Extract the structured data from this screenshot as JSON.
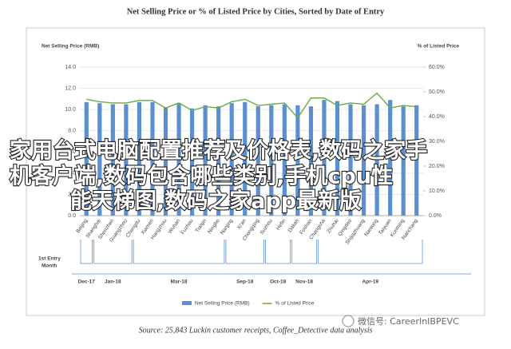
{
  "chart_data": {
    "type": "bar_line",
    "title": "Net Selling Price or % of Listed Price by Cities, Sorted by Date of Entry",
    "y_label": "Net Selling Price (RMB)",
    "y2_label": "% of Listed Price",
    "categories": [
      "Beijing",
      "Shanghai",
      "Shenzhen",
      "Guangzhou",
      "Chengdu",
      "Xiamen",
      "Hangzhou",
      "Wuhan",
      "Fuzhou",
      "Tianjin",
      "Ningbo",
      "Nanjing",
      "Xi'an",
      "Chongqing",
      "Suzhou",
      "Hefei",
      "Dalian",
      "Foshan",
      "Changsha",
      "Zhuhai",
      "Qingdao",
      "Shijiazhuang",
      "Nantong",
      "Taiyuan",
      "Kunming",
      "Nanchang"
    ],
    "series": [
      {
        "name": "Net Selling Price (RMB)",
        "color": "#5b8fd0",
        "kind": "bar",
        "values": [
          10.7,
          10.6,
          10.5,
          10.5,
          10.7,
          10.7,
          10.2,
          10.6,
          10.1,
          10.4,
          10.3,
          10.6,
          10.7,
          10.3,
          10.4,
          10.5,
          10.4,
          10.3,
          10.9,
          10.8,
          10.5,
          10.4,
          10.5,
          10.9,
          10.3,
          10.4
        ]
      },
      {
        "name": "% of Listed Price",
        "color": "#6aaa46",
        "kind": "line",
        "axis": "y2",
        "values": [
          47,
          46,
          45.5,
          45.5,
          46.5,
          46.5,
          43.5,
          45.5,
          42.5,
          44,
          43.5,
          46,
          47,
          44.5,
          45,
          45.5,
          39.5,
          47.5,
          47.5,
          44.5,
          45.5,
          45,
          49.5,
          43.5,
          44.5,
          44
        ]
      }
    ],
    "ylim": [
      0,
      14
    ],
    "yticks": [
      {
        "value": 0,
        "label": "0.0"
      },
      {
        "value": 2,
        "label": "2.0"
      },
      {
        "value": 4,
        "label": "4.0"
      },
      {
        "value": 6,
        "label": "6.0"
      },
      {
        "value": 8,
        "label": "8.0"
      },
      {
        "value": 10,
        "label": "10.0"
      },
      {
        "value": 12,
        "label": "12.0"
      },
      {
        "value": 14,
        "label": "14.0"
      }
    ],
    "y2lim": [
      0,
      60
    ],
    "y2ticks": [
      {
        "value": 0,
        "label": "0.0%"
      },
      {
        "value": 10,
        "label": "10.0%"
      },
      {
        "value": 20,
        "label": "20.0%"
      },
      {
        "value": 30,
        "label": "30.0%"
      },
      {
        "value": 40,
        "label": "40.0%"
      },
      {
        "value": 50,
        "label": "50.0%"
      },
      {
        "value": 60,
        "label": "60.0%"
      }
    ],
    "grid": true,
    "entry_title": [
      "1st Entry",
      "Month"
    ],
    "entry_month": [
      "Dec-17",
      "Jan-18",
      "Jan-18",
      "Jan-18",
      "Mar-18",
      "Mar-18",
      "Mar-18",
      "Mar-18",
      "Mar-18",
      "Mar-18",
      "Mar-18",
      "Sep-18",
      "Sep-18",
      "Sep-18",
      "Oct-18",
      "Oct-18",
      "Nov-18",
      "Nov-18",
      "Apr-19",
      "Apr-19",
      "Apr-19",
      "Apr-19",
      "Apr-19",
      "Apr-19",
      "Apr-19",
      "Apr-19"
    ],
    "source": "Source: 25,843 Luckin customer receipts, Coffee_Detective data analysis"
  },
  "overlay": {
    "lines": [
      "家用台式电脑配置推荐及价格表,数码之家手",
      "机客户端,数码包含哪些类别,手机cpu性",
      "能天梯图,数码之家app最新版"
    ]
  },
  "watermark": "微信号: CareerInIBPEVC"
}
